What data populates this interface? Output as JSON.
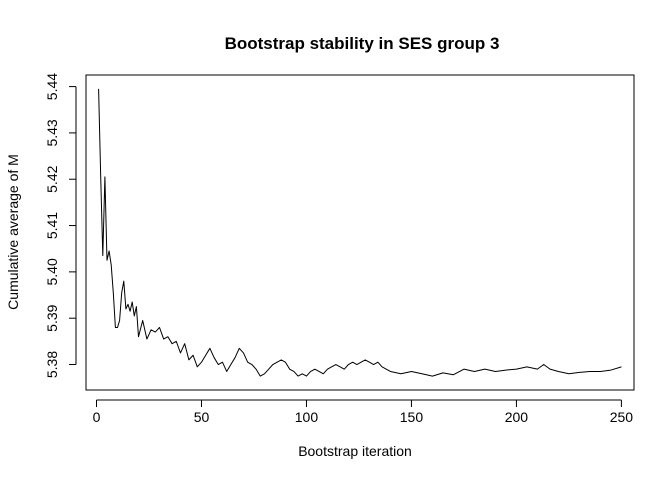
{
  "chart_data": {
    "type": "line",
    "title": "Bootstrap stability in SES group 3",
    "xlabel": "Bootstrap iteration",
    "ylabel": "Cumulative average of M",
    "xlim": [
      -5,
      256
    ],
    "ylim": [
      5.3745,
      5.4425
    ],
    "xticks": [
      0,
      50,
      100,
      150,
      200,
      250
    ],
    "yticks": [
      5.38,
      5.39,
      5.4,
      5.41,
      5.42,
      5.43,
      5.44
    ],
    "ytick_labels": [
      "5.38",
      "5.39",
      "5.40",
      "5.41",
      "5.42",
      "5.43",
      "5.44"
    ],
    "grid": false,
    "series": [
      {
        "color": "#000000",
        "x": [
          1,
          2,
          3,
          4,
          5,
          6,
          7,
          8,
          9,
          10,
          11,
          12,
          13,
          14,
          15,
          16,
          17,
          18,
          19,
          20,
          22,
          24,
          26,
          28,
          30,
          32,
          34,
          36,
          38,
          40,
          42,
          44,
          46,
          48,
          50,
          52,
          54,
          56,
          58,
          60,
          62,
          64,
          66,
          68,
          70,
          72,
          74,
          76,
          78,
          80,
          82,
          84,
          86,
          88,
          90,
          92,
          94,
          96,
          98,
          100,
          102,
          104,
          106,
          108,
          110,
          112,
          114,
          116,
          118,
          120,
          122,
          124,
          126,
          128,
          130,
          132,
          134,
          136,
          138,
          140,
          145,
          150,
          155,
          160,
          165,
          170,
          175,
          180,
          185,
          190,
          195,
          200,
          205,
          210,
          213,
          216,
          220,
          225,
          230,
          235,
          240,
          245,
          250
        ],
        "y": [
          5.4395,
          5.4205,
          5.4035,
          5.4205,
          5.4025,
          5.4045,
          5.4015,
          5.3955,
          5.388,
          5.388,
          5.3895,
          5.3955,
          5.398,
          5.392,
          5.393,
          5.3915,
          5.3935,
          5.3905,
          5.3925,
          5.386,
          5.3895,
          5.3855,
          5.3875,
          5.387,
          5.388,
          5.3855,
          5.386,
          5.3845,
          5.385,
          5.3825,
          5.3845,
          5.381,
          5.382,
          5.3795,
          5.3805,
          5.382,
          5.3835,
          5.3815,
          5.38,
          5.3805,
          5.3785,
          5.38,
          5.3815,
          5.3835,
          5.3825,
          5.3805,
          5.38,
          5.379,
          5.3775,
          5.378,
          5.379,
          5.38,
          5.3805,
          5.381,
          5.3805,
          5.379,
          5.3785,
          5.3775,
          5.378,
          5.3775,
          5.3785,
          5.379,
          5.3785,
          5.378,
          5.379,
          5.3795,
          5.38,
          5.3795,
          5.379,
          5.38,
          5.3805,
          5.38,
          5.3805,
          5.381,
          5.3805,
          5.38,
          5.3805,
          5.3795,
          5.379,
          5.3785,
          5.378,
          5.3785,
          5.378,
          5.3775,
          5.3782,
          5.3778,
          5.379,
          5.3785,
          5.379,
          5.3785,
          5.3788,
          5.379,
          5.3795,
          5.379,
          5.38,
          5.379,
          5.3785,
          5.378,
          5.3783,
          5.3785,
          5.3785,
          5.3788,
          5.3795
        ]
      }
    ]
  }
}
